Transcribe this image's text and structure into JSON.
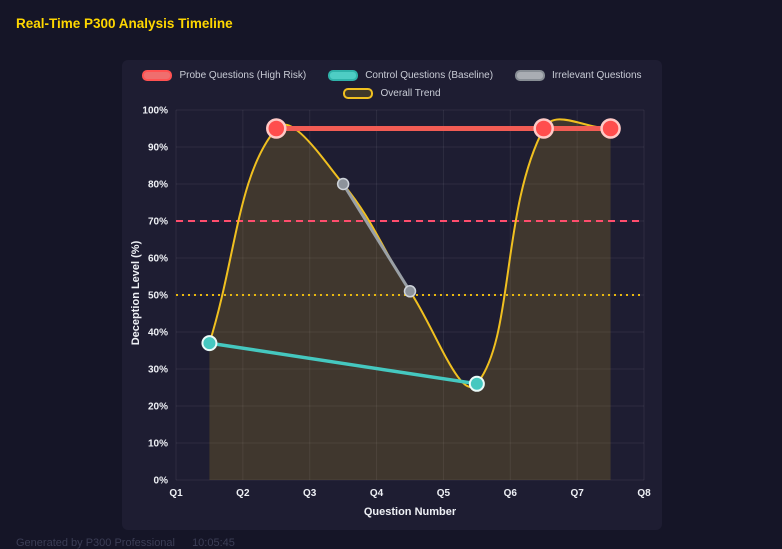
{
  "page": {
    "title": "Real-Time P300 Analysis Timeline",
    "footer": {
      "generated_by": "Generated by P300 Professional",
      "time": "10:05:45"
    }
  },
  "colors": {
    "page_bg": "#151527",
    "panel_bg": "#1e1d32",
    "title": "#ffd700",
    "grid": "rgba(255,255,255,0.07)",
    "tick_text": "#eef0f5"
  },
  "chart_data": {
    "type": "line",
    "title": "Real-Time P300 Analysis Timeline",
    "xlabel": "Question Number",
    "ylabel": "Deception Level (%)",
    "xlim": [
      1,
      8
    ],
    "ylim": [
      0,
      100
    ],
    "x_tick_values": [
      1,
      2,
      3,
      4,
      5,
      6,
      7,
      8
    ],
    "x_tick_labels": [
      "Q1",
      "Q2",
      "Q3",
      "Q4",
      "Q5",
      "Q6",
      "Q7",
      "Q8"
    ],
    "y_tick_values": [
      0,
      10,
      20,
      30,
      40,
      50,
      60,
      70,
      80,
      90,
      100
    ],
    "y_tick_labels": [
      "0%",
      "10%",
      "20%",
      "30%",
      "40%",
      "50%",
      "60%",
      "70%",
      "80%",
      "90%",
      "100%"
    ],
    "grid": true,
    "legend_position": "top",
    "series": [
      {
        "id": "trend",
        "name": "Overall Trend",
        "shape": "spline",
        "fill_to_zero": true,
        "color": "#f0c020",
        "fill_color": "rgba(240,192,32,0.16)",
        "line_width": 2,
        "point_radius": 0,
        "x": [
          1.5,
          2.5,
          3.5,
          4.5,
          5.5,
          6.5,
          7.5
        ],
        "y": [
          37,
          95,
          80,
          51,
          26,
          95,
          95
        ]
      },
      {
        "id": "irrelevant",
        "name": "Irrelevant Questions",
        "shape": "line",
        "color": "#9aa0a6",
        "line_width": 3,
        "point_radius": 5.5,
        "point_fill": "#8d939b",
        "point_stroke": "#ced3da",
        "point_stroke_width": 1.5,
        "x": [
          3.5,
          4.5
        ],
        "y": [
          80,
          51
        ]
      },
      {
        "id": "control",
        "name": "Control Questions (Baseline)",
        "shape": "line",
        "color": "#45c8c0",
        "line_width": 3.5,
        "point_radius": 7,
        "point_fill": "#45c8c0",
        "point_stroke": "#eafaf8",
        "point_stroke_width": 2,
        "x": [
          1.5,
          5.5
        ],
        "y": [
          37,
          26
        ]
      },
      {
        "id": "probe",
        "name": "Probe Questions (High Risk)",
        "shape": "line",
        "color": "#f25c54",
        "line_width": 5,
        "point_radius": 9,
        "point_fill": "#ff4d4d",
        "point_stroke": "#ffc9c6",
        "point_stroke_width": 2.5,
        "x": [
          2.5,
          6.5,
          7.5
        ],
        "y": [
          95,
          95,
          95
        ]
      }
    ],
    "thresholds": [
      {
        "y": 70,
        "color": "#ff4d6d",
        "dash": "7,5",
        "width": 2
      },
      {
        "y": 50,
        "color": "#e8b80e",
        "dash": "2,4",
        "width": 2
      }
    ],
    "legend": [
      {
        "id": "probe",
        "label": "Probe Questions (High Risk)",
        "fill": "#ef6e6e",
        "border": "#ff5252"
      },
      {
        "id": "control",
        "label": "Control Questions (Baseline)",
        "fill": "#4ecdc4",
        "border": "#2fb3aa"
      },
      {
        "id": "irrelevant",
        "label": "Irrelevant Questions",
        "fill": "#a9adb3",
        "border": "#888e95"
      },
      {
        "id": "trend",
        "label": "Overall Trend",
        "fill": "rgba(255,215,0,0.15)",
        "border": "#f0c020"
      }
    ]
  }
}
